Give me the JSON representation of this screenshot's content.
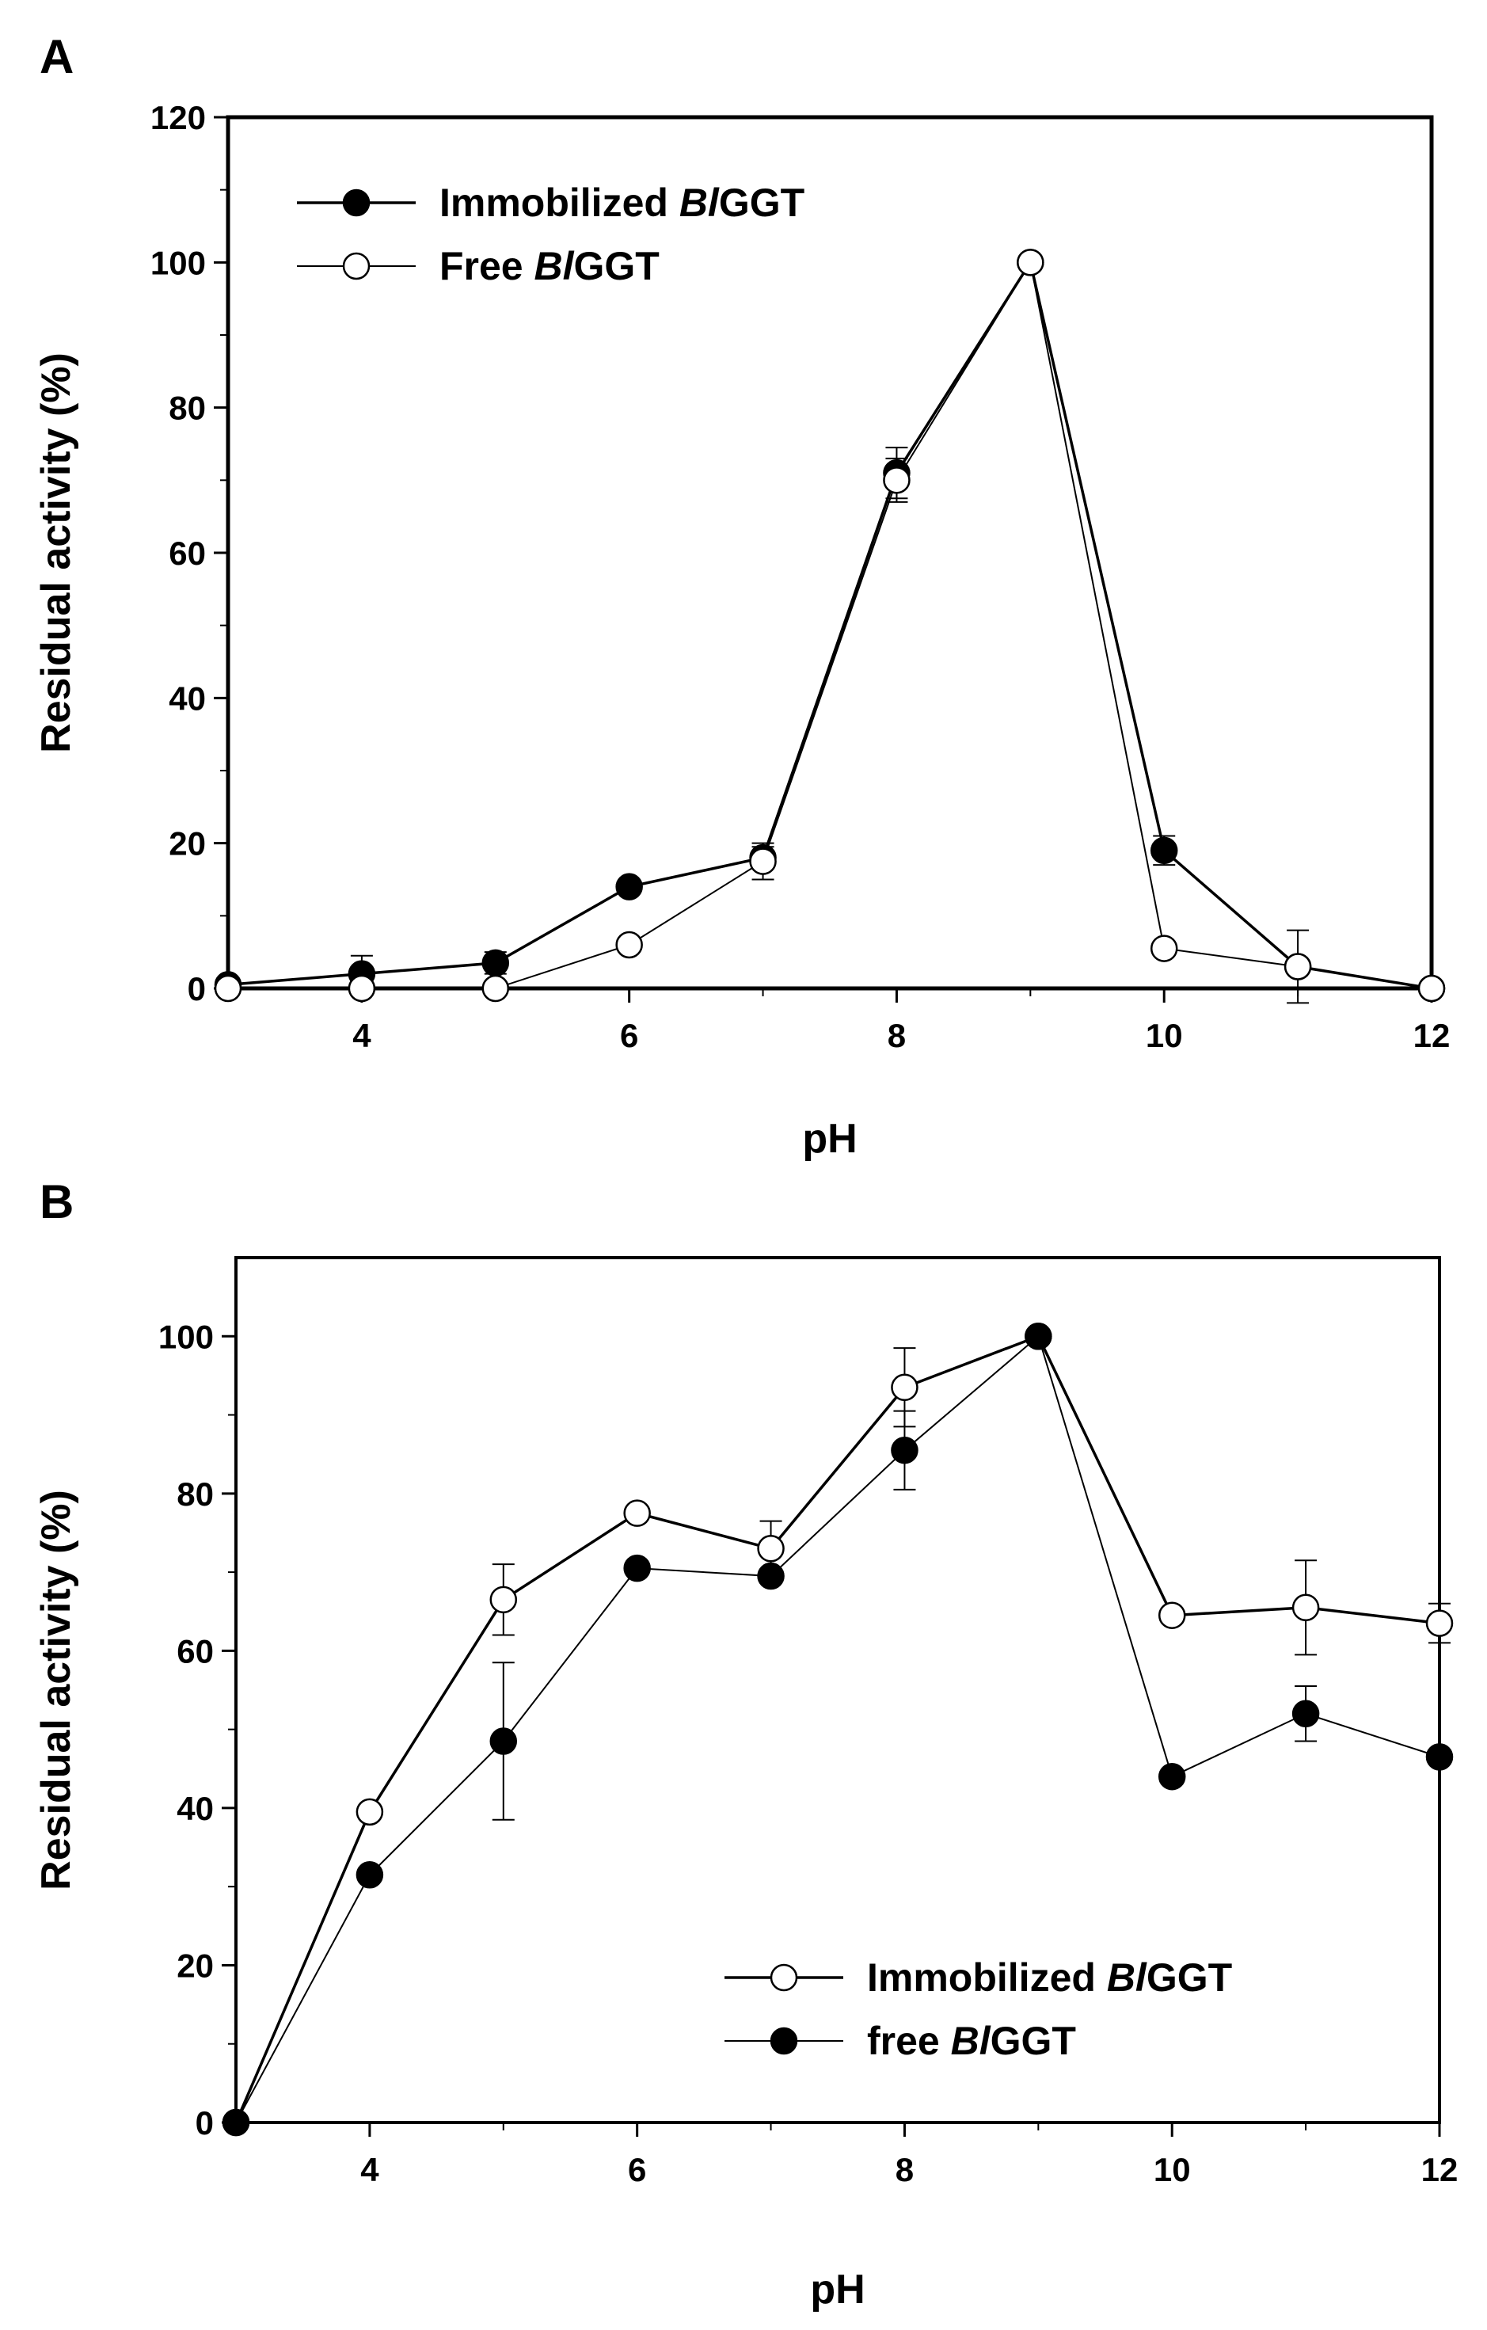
{
  "chart_data": [
    {
      "panel": "A",
      "type": "line",
      "xlabel": "pH",
      "ylabel": "Residual activity (%)",
      "xlim": [
        3,
        12
      ],
      "ylim": [
        0,
        120
      ],
      "xticks": [
        4,
        6,
        8,
        10,
        12
      ],
      "yticks": [
        0,
        20,
        40,
        60,
        80,
        100,
        120
      ],
      "legend_position": "top-left",
      "series": [
        {
          "name_prefix": "Immobilized ",
          "name_italic": "Bl",
          "name_suffix": "GGT",
          "marker": "filled",
          "line": "normal",
          "x": [
            3,
            4,
            5,
            6,
            7,
            8,
            9,
            10,
            11,
            12
          ],
          "y": [
            0.5,
            2,
            3.5,
            14,
            18,
            71,
            100,
            19,
            3,
            0
          ],
          "err": [
            0,
            2.5,
            1.5,
            0,
            1.5,
            3.5,
            0,
            2,
            0,
            0
          ]
        },
        {
          "name_prefix": "Free ",
          "name_italic": "Bl",
          "name_suffix": "GGT",
          "marker": "open",
          "line": "thin",
          "x": [
            3,
            4,
            5,
            6,
            7,
            8,
            9,
            10,
            11,
            12
          ],
          "y": [
            0,
            0,
            0,
            6,
            17.5,
            70,
            100,
            5.5,
            3,
            0
          ],
          "err": [
            0,
            0,
            0,
            0,
            2.5,
            3,
            0,
            0,
            5,
            0
          ]
        }
      ]
    },
    {
      "panel": "B",
      "type": "line",
      "xlabel": "pH",
      "ylabel": "Residual activity (%)",
      "xlim": [
        3,
        12
      ],
      "ylim": [
        0,
        110
      ],
      "xticks": [
        4,
        6,
        8,
        10,
        12
      ],
      "yticks": [
        0,
        20,
        40,
        60,
        80,
        100
      ],
      "legend_position": "bottom-right",
      "series": [
        {
          "name_prefix": "Immobilized ",
          "name_italic": "Bl",
          "name_suffix": "GGT",
          "marker": "open",
          "line": "normal",
          "x": [
            3,
            4,
            5,
            6,
            7,
            8,
            9,
            10,
            11,
            12
          ],
          "y": [
            0,
            39.5,
            66.5,
            77.5,
            73,
            93.5,
            100,
            64.5,
            65.5,
            63.5
          ],
          "err": [
            0,
            0,
            4.5,
            0,
            3.5,
            5,
            0,
            0,
            6,
            2.5
          ]
        },
        {
          "name_prefix": "free ",
          "name_italic": "Bl",
          "name_suffix": "GGT",
          "marker": "filled",
          "line": "thin",
          "x": [
            3,
            4,
            5,
            6,
            7,
            8,
            9,
            10,
            11,
            12
          ],
          "y": [
            0,
            31.5,
            48.5,
            70.5,
            69.5,
            85.5,
            100,
            44,
            52,
            46.5
          ],
          "err": [
            0,
            0,
            10,
            0,
            0,
            5,
            0,
            0,
            3.5,
            0
          ]
        }
      ]
    }
  ]
}
